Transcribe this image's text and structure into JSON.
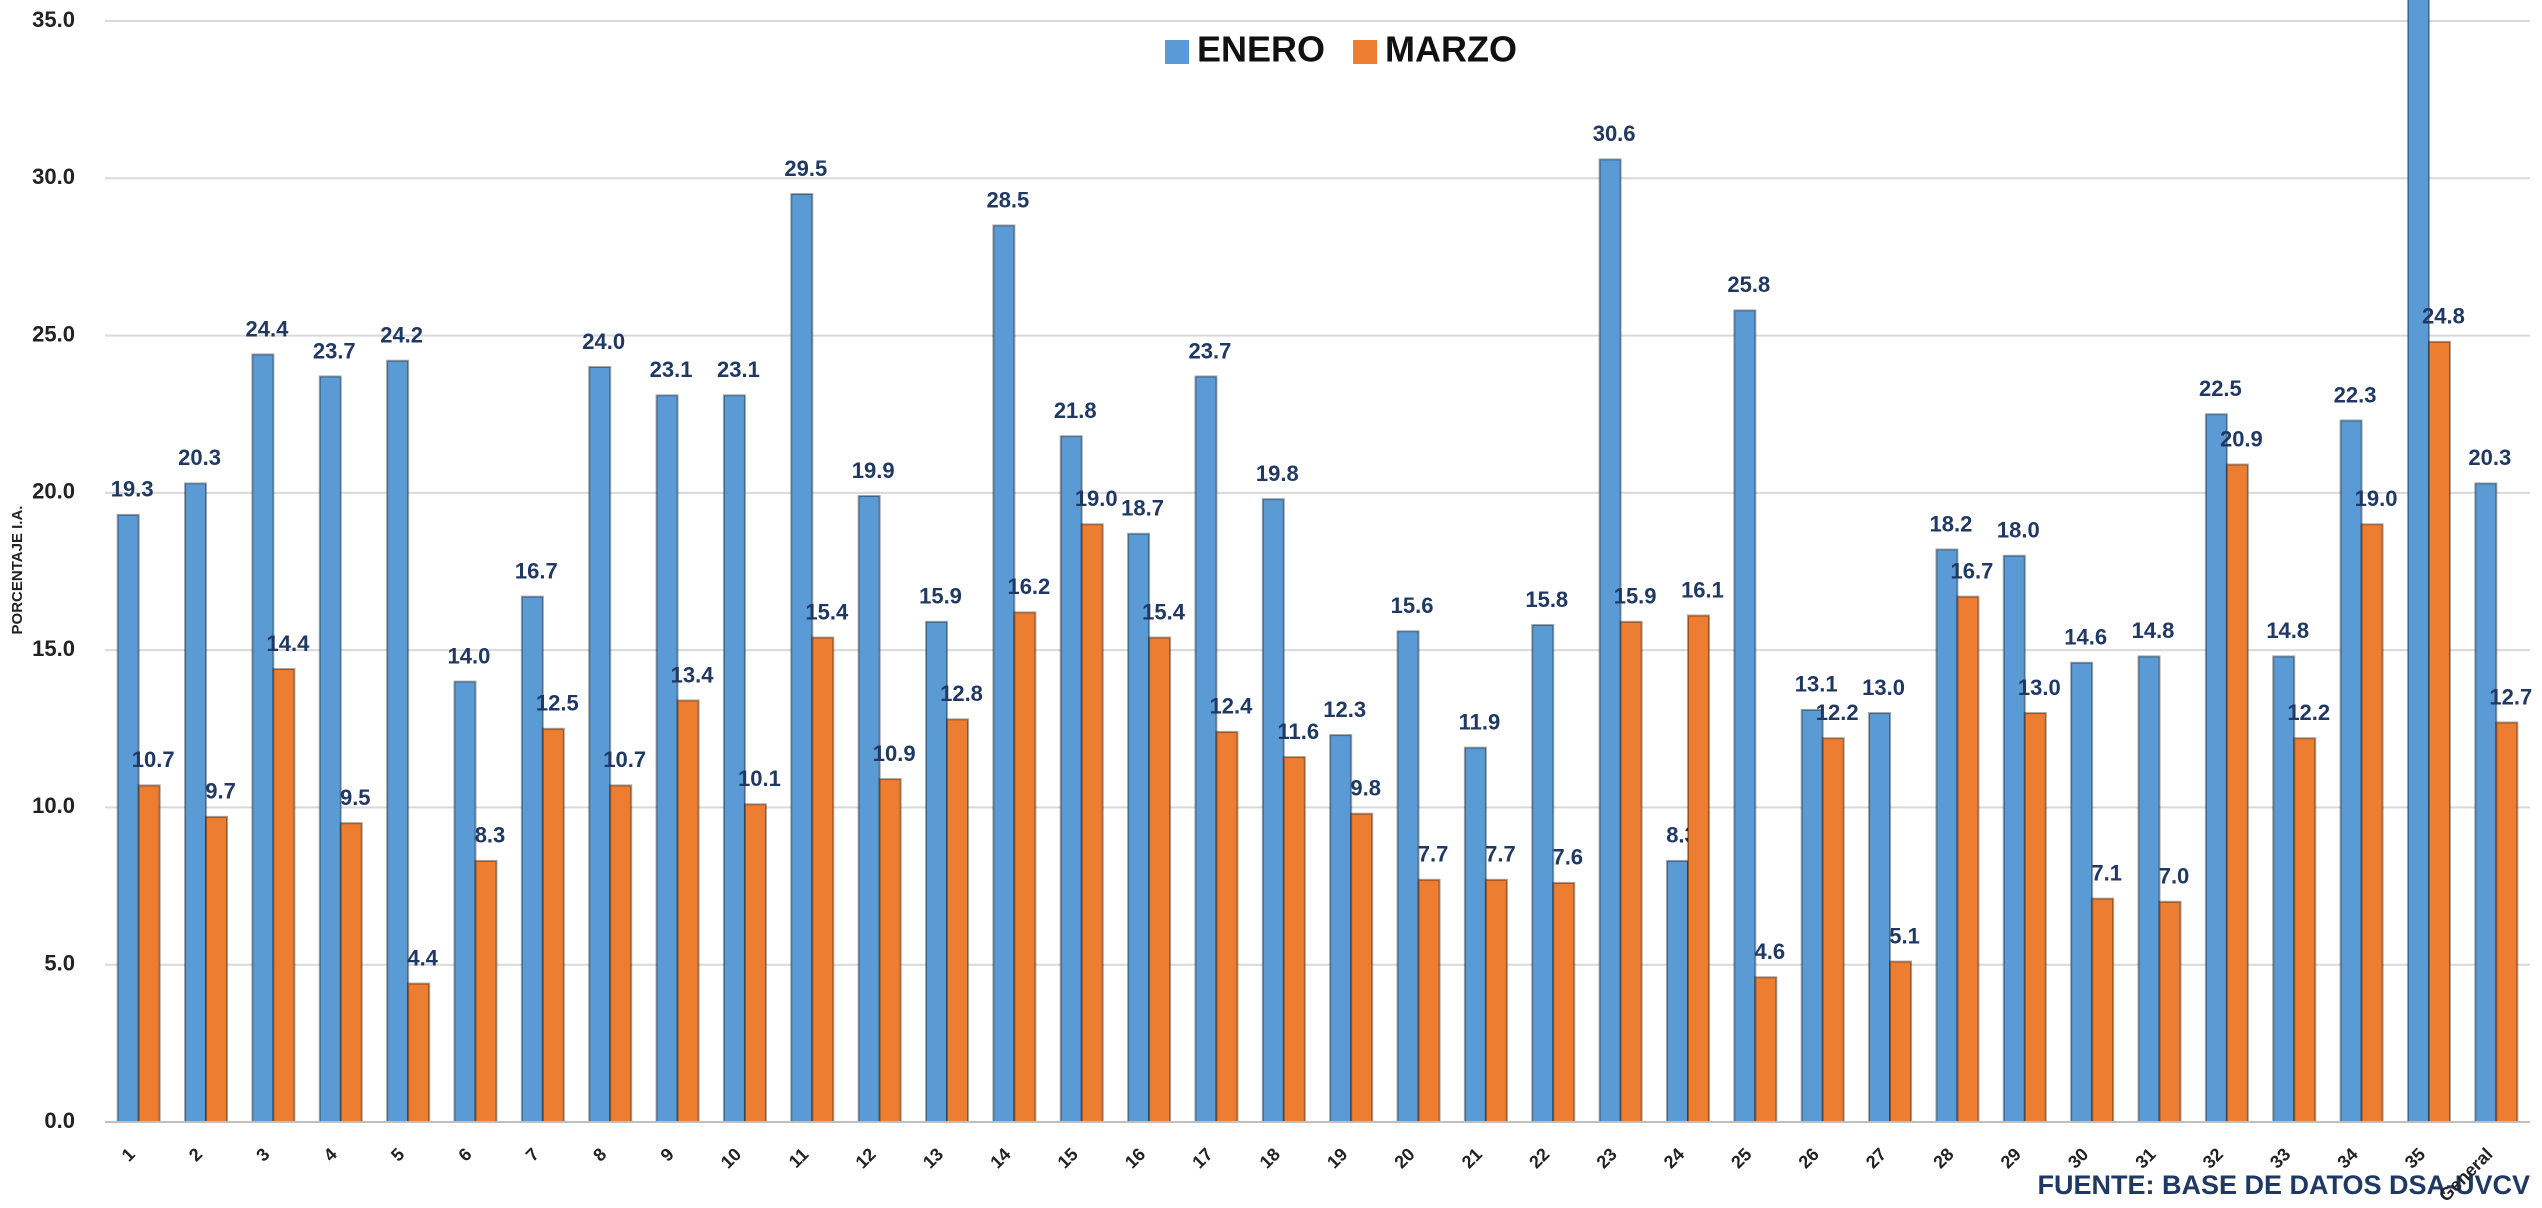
{
  "chart_data": {
    "type": "bar",
    "y_axis_label": "PORCENTAJE I.A.",
    "source": "FUENTE: BASE DE DATOS DSA-UVCV",
    "categories": [
      "1",
      "2",
      "3",
      "4",
      "5",
      "6",
      "7",
      "8",
      "9",
      "10",
      "11",
      "12",
      "13",
      "14",
      "15",
      "16",
      "17",
      "18",
      "19",
      "20",
      "21",
      "22",
      "23",
      "24",
      "25",
      "26",
      "27",
      "28",
      "29",
      "30",
      "31",
      "32",
      "33",
      "34",
      "35",
      "General"
    ],
    "series": [
      {
        "name": "ENERO",
        "color": "#5b9bd5",
        "values": [
          19.3,
          20.3,
          24.4,
          23.7,
          24.2,
          14.0,
          16.7,
          24.0,
          23.1,
          23.1,
          29.5,
          19.9,
          15.9,
          28.5,
          21.8,
          18.7,
          23.7,
          19.8,
          12.3,
          15.6,
          11.9,
          15.8,
          30.6,
          8.3,
          25.8,
          13.1,
          13.0,
          18.2,
          18.0,
          14.6,
          14.8,
          22.5,
          14.8,
          22.3,
          36.5,
          20.3
        ],
        "value_labels": [
          "19.3",
          "20.3",
          "24.4",
          "23.7",
          "24.2",
          "14.0",
          "16.7",
          "24.0",
          "23.1",
          "23.1",
          "29.5",
          "19.9",
          "15.9",
          "28.5",
          "21.8",
          "18.7",
          "23.7",
          "19.8",
          "12.3",
          "15.6",
          "11.9",
          "15.8",
          "30.6",
          "8.3",
          "25.8",
          "13.1",
          "13.0",
          "18.2",
          "18.0",
          "14.6",
          "14.8",
          "22.5",
          "14.8",
          "22.3",
          null,
          "20.3"
        ]
      },
      {
        "name": "MARZO",
        "color": "#ed7d31",
        "values": [
          10.7,
          9.7,
          14.4,
          9.5,
          4.4,
          8.3,
          12.5,
          10.7,
          13.4,
          10.1,
          15.4,
          10.9,
          12.8,
          16.2,
          19.0,
          15.4,
          12.4,
          11.6,
          9.8,
          7.7,
          7.7,
          7.6,
          15.9,
          16.1,
          4.6,
          12.2,
          5.1,
          16.7,
          13.0,
          7.1,
          7.0,
          20.9,
          12.2,
          19.0,
          24.8,
          12.7
        ],
        "value_labels": [
          "10.7",
          "9.7",
          "14.4",
          "9.5",
          "4.4",
          "8.3",
          "12.5",
          "10.7",
          "13.4",
          "10.1",
          "15.4",
          "10.9",
          "12.8",
          "16.2",
          "19.0",
          "15.4",
          "12.4",
          "11.6",
          "9.8",
          "7.7",
          "7.7",
          "7.6",
          "15.9",
          "16.1",
          "4.6",
          "12.2",
          "5.1",
          "16.7",
          "13.0",
          "7.1",
          "7.0",
          "20.9",
          "12.2",
          "19.0",
          "24.8",
          "12.7"
        ]
      }
    ],
    "ylim": [
      0,
      35
    ],
    "yticks": [
      {
        "value": 0,
        "label": "0.0"
      },
      {
        "value": 5,
        "label": "5.0"
      },
      {
        "value": 10,
        "label": "10.0"
      },
      {
        "value": 15,
        "label": "15.0"
      },
      {
        "value": 20,
        "label": "20.0"
      },
      {
        "value": 25,
        "label": "25.0"
      },
      {
        "value": 30,
        "label": "30.0"
      },
      {
        "value": 35,
        "label": "35.0"
      }
    ],
    "grid": true,
    "legend": "top"
  }
}
